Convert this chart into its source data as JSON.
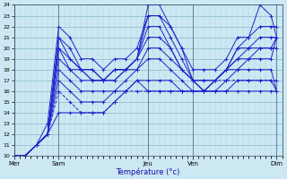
{
  "xlabel": "Température (°c)",
  "ylim": [
    10,
    24
  ],
  "xlim": [
    0,
    144
  ],
  "yticks": [
    10,
    11,
    12,
    13,
    14,
    15,
    16,
    17,
    18,
    19,
    20,
    21,
    22,
    23,
    24
  ],
  "day_labels": [
    "Mer",
    "Sam",
    "Jeu",
    "Ven",
    "Dim"
  ],
  "day_positions": [
    0,
    24,
    72,
    96,
    141
  ],
  "bg_color": "#cce8f2",
  "line_color": "#2222cc",
  "grid_minor_color": "#aad4e0",
  "grid_major_color": "#88b8cc",
  "series": [
    [
      0,
      10,
      6,
      10,
      12,
      11,
      18,
      13,
      24,
      22,
      30,
      21,
      36,
      19,
      42,
      19,
      48,
      18,
      54,
      19,
      60,
      19,
      66,
      20,
      72,
      23,
      78,
      23,
      84,
      22,
      90,
      20,
      96,
      18,
      102,
      18,
      108,
      18,
      114,
      19,
      120,
      21,
      126,
      21,
      132,
      22,
      138,
      22,
      141,
      22
    ],
    [
      0,
      10,
      6,
      10,
      12,
      11,
      18,
      12,
      24,
      21,
      30,
      20,
      36,
      18,
      42,
      18,
      48,
      17,
      54,
      18,
      60,
      18,
      66,
      19,
      72,
      24,
      78,
      24,
      84,
      22,
      90,
      20,
      96,
      17,
      102,
      17,
      108,
      17,
      114,
      18,
      120,
      20,
      126,
      21,
      132,
      24,
      138,
      23,
      141,
      21
    ],
    [
      0,
      10,
      6,
      10,
      12,
      11,
      18,
      12,
      24,
      21,
      30,
      19,
      36,
      18,
      42,
      18,
      48,
      17,
      54,
      18,
      60,
      18,
      66,
      19,
      72,
      23,
      78,
      23,
      84,
      21,
      90,
      19,
      96,
      17,
      102,
      17,
      108,
      17,
      114,
      18,
      120,
      20,
      126,
      20,
      132,
      21,
      138,
      21,
      141,
      21
    ],
    [
      0,
      10,
      6,
      10,
      12,
      11,
      18,
      12,
      24,
      20,
      30,
      19,
      36,
      18,
      42,
      17,
      48,
      17,
      54,
      18,
      60,
      18,
      66,
      19,
      72,
      22,
      78,
      22,
      84,
      20,
      90,
      18,
      96,
      17,
      102,
      16,
      108,
      17,
      114,
      18,
      120,
      19,
      126,
      20,
      132,
      20,
      138,
      20,
      141,
      20
    ],
    [
      0,
      10,
      6,
      10,
      12,
      11,
      18,
      12,
      24,
      20,
      30,
      18,
      36,
      18,
      42,
      17,
      48,
      17,
      54,
      17,
      60,
      18,
      66,
      19,
      72,
      21,
      78,
      21,
      84,
      20,
      90,
      18,
      96,
      17,
      102,
      16,
      108,
      17,
      114,
      18,
      120,
      19,
      126,
      19,
      132,
      20,
      138,
      20,
      141,
      21
    ],
    [
      0,
      10,
      6,
      10,
      12,
      11,
      18,
      12,
      24,
      19,
      30,
      18,
      36,
      17,
      42,
      17,
      48,
      17,
      54,
      17,
      60,
      18,
      66,
      18,
      72,
      20,
      78,
      20,
      84,
      19,
      90,
      18,
      96,
      17,
      102,
      16,
      108,
      17,
      114,
      18,
      120,
      18,
      126,
      19,
      132,
      19,
      138,
      19,
      141,
      21
    ],
    [
      0,
      10,
      6,
      10,
      12,
      11,
      18,
      12,
      24,
      18,
      30,
      17,
      36,
      16,
      42,
      16,
      48,
      16,
      54,
      16,
      60,
      17,
      66,
      18,
      72,
      19,
      78,
      19,
      84,
      18,
      90,
      17,
      96,
      16,
      102,
      16,
      108,
      16,
      114,
      17,
      120,
      18,
      126,
      18,
      132,
      18,
      138,
      18,
      141,
      16
    ],
    [
      0,
      10,
      6,
      10,
      12,
      11,
      18,
      12,
      24,
      17,
      30,
      16,
      36,
      15,
      42,
      15,
      48,
      15,
      54,
      16,
      60,
      16,
      66,
      17,
      72,
      17,
      78,
      17,
      84,
      17,
      90,
      16,
      96,
      16,
      102,
      16,
      108,
      16,
      114,
      16,
      120,
      17,
      126,
      17,
      132,
      17,
      138,
      17,
      141,
      16
    ],
    [
      0,
      10,
      6,
      10,
      12,
      11,
      18,
      12,
      24,
      14,
      30,
      14,
      36,
      14,
      42,
      14,
      48,
      14,
      54,
      15,
      60,
      16,
      66,
      17,
      72,
      16,
      78,
      16,
      84,
      16,
      90,
      16,
      96,
      16,
      102,
      16,
      108,
      16,
      114,
      16,
      120,
      16,
      126,
      16,
      132,
      16,
      138,
      16,
      141,
      16
    ]
  ],
  "dashed_series": [
    [
      0,
      10,
      6,
      10,
      12,
      11,
      18,
      12,
      24,
      16,
      30,
      15,
      36,
      14,
      42,
      14,
      48,
      14,
      54,
      15,
      60,
      16,
      66,
      16,
      72,
      16,
      78,
      16,
      84,
      16,
      90,
      16,
      96,
      16,
      102,
      16,
      108,
      17,
      114,
      17,
      120,
      17,
      126,
      17,
      132,
      17,
      138,
      17,
      141,
      17
    ]
  ]
}
